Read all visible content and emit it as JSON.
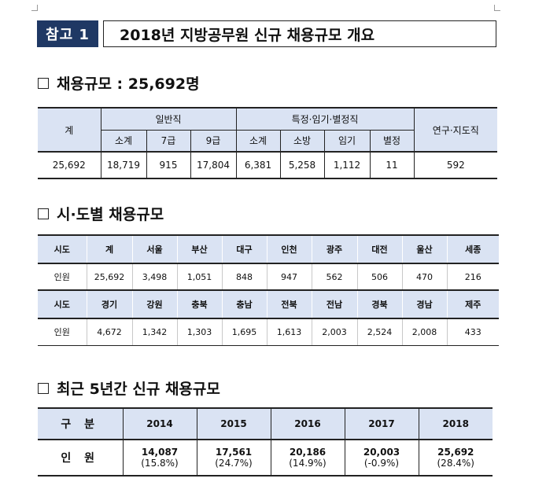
{
  "title": {
    "tag": "참고 1",
    "text": "2018년 지방공무원 신규 채용규모 개요"
  },
  "sec1": {
    "heading": "채용규모 : 25,692명"
  },
  "t1": {
    "total": "계",
    "group_general": "일반직",
    "group_special": "특정·임기·별정직",
    "group_research": "연구·지도직",
    "sub": [
      "소계",
      "7급",
      "9급",
      "소계",
      "소방",
      "임기",
      "별정"
    ],
    "values": [
      "25,692",
      "18,719",
      "915",
      "17,804",
      "6,381",
      "5,258",
      "1,112",
      "11",
      "592"
    ]
  },
  "sec2": {
    "heading": "시·도별 채용규모"
  },
  "t2": {
    "row1_head": [
      "시도",
      "계",
      "서울",
      "부산",
      "대구",
      "인천",
      "광주",
      "대전",
      "울산",
      "세종"
    ],
    "row1_vals": [
      "인원",
      "25,692",
      "3,498",
      "1,051",
      "848",
      "947",
      "562",
      "506",
      "470",
      "216"
    ],
    "row2_head": [
      "시도",
      "경기",
      "강원",
      "충북",
      "충남",
      "전북",
      "전남",
      "경북",
      "경남",
      "제주"
    ],
    "row2_vals": [
      "인원",
      "4,672",
      "1,342",
      "1,303",
      "1,695",
      "1,613",
      "2,003",
      "2,524",
      "2,008",
      "433"
    ]
  },
  "sec3": {
    "heading": "최근 5년간 신규 채용규모"
  },
  "t3": {
    "head_label": "구 분",
    "years": [
      "2014",
      "2015",
      "2016",
      "2017",
      "2018"
    ],
    "row_label": "인 원",
    "values": [
      "14,087",
      "17,561",
      "20,186",
      "20,003",
      "25,692"
    ],
    "changes": [
      "(15.8%)",
      "(24.7%)",
      "(14.9%)",
      "(-0.9%)",
      "(28.4%)"
    ]
  }
}
